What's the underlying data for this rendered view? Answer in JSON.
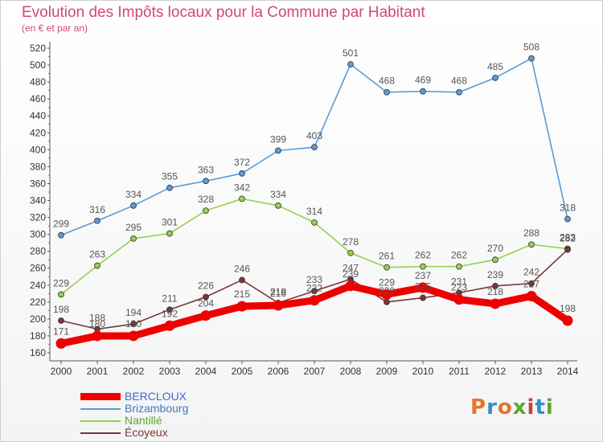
{
  "header": {
    "title": "Evolution des Impôts locaux pour la Commune par Habitant",
    "subtitle": "(en € et par an)"
  },
  "logo": {
    "text": "Proxiti",
    "colors": [
      "#e8742a",
      "#2f8fd0",
      "#e8742a",
      "#5aaa2e",
      "#d03b3b",
      "#2f8fd0",
      "#5aaa2e"
    ]
  },
  "chart_data": {
    "type": "line",
    "title": "Evolution des Impôts locaux pour la Commune par Habitant",
    "subtitle": "(en € et par an)",
    "x": [
      "2000",
      "2001",
      "2002",
      "2003",
      "2004",
      "2005",
      "2006",
      "2007",
      "2008",
      "2009",
      "2010",
      "2011",
      "2012",
      "2013",
      "2014"
    ],
    "ylim": [
      160,
      520
    ],
    "ytick_step": 20,
    "grid": false,
    "legend_position": "bottom-left",
    "series": [
      {
        "name": "BERCLOUX",
        "color": "#ee0000",
        "emphasis": true,
        "values": [
          171,
          180,
          180,
          192,
          204,
          215,
          216,
          222,
          239,
          229,
          237,
          223,
          218,
          227,
          198
        ]
      },
      {
        "name": "Brizambourg",
        "color": "#5b9bd5",
        "emphasis": false,
        "values": [
          299,
          316,
          334,
          355,
          363,
          372,
          399,
          403,
          501,
          468,
          469,
          468,
          485,
          508,
          318
        ]
      },
      {
        "name": "Nantillé",
        "color": "#92d050",
        "emphasis": false,
        "values": [
          229,
          263,
          295,
          301,
          328,
          342,
          334,
          314,
          278,
          261,
          262,
          262,
          270,
          288,
          283
        ]
      },
      {
        "name": "Écoyeux",
        "color": "#7b3535",
        "emphasis": false,
        "values": [
          198,
          188,
          194,
          211,
          226,
          246,
          219,
          233,
          247,
          220,
          225,
          231,
          239,
          242,
          282
        ]
      }
    ]
  }
}
